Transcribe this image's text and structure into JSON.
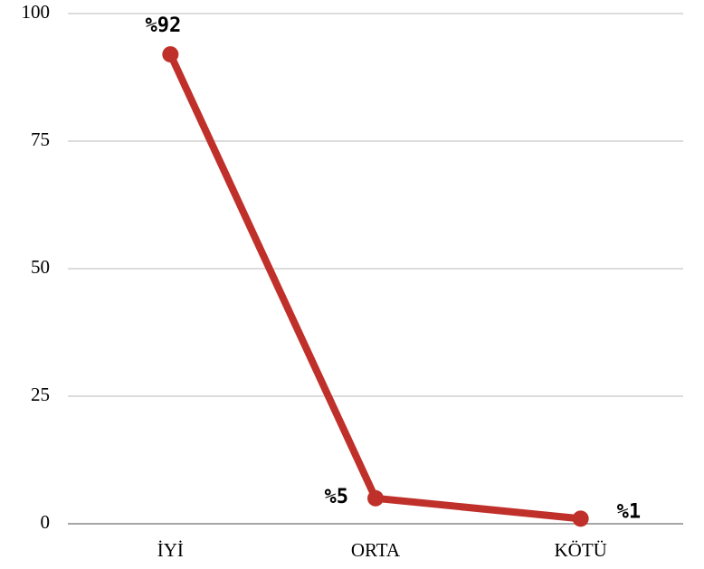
{
  "chart_data": {
    "type": "line",
    "categories": [
      "İYİ",
      "ORTA",
      "KÖTÜ"
    ],
    "values": [
      92,
      5,
      1
    ],
    "value_labels": [
      "%92",
      "%5",
      "%1"
    ],
    "color": "#c0302a",
    "ylim": [
      0,
      100
    ],
    "yticks": [
      0,
      25,
      50,
      75,
      100
    ],
    "grid": true
  }
}
